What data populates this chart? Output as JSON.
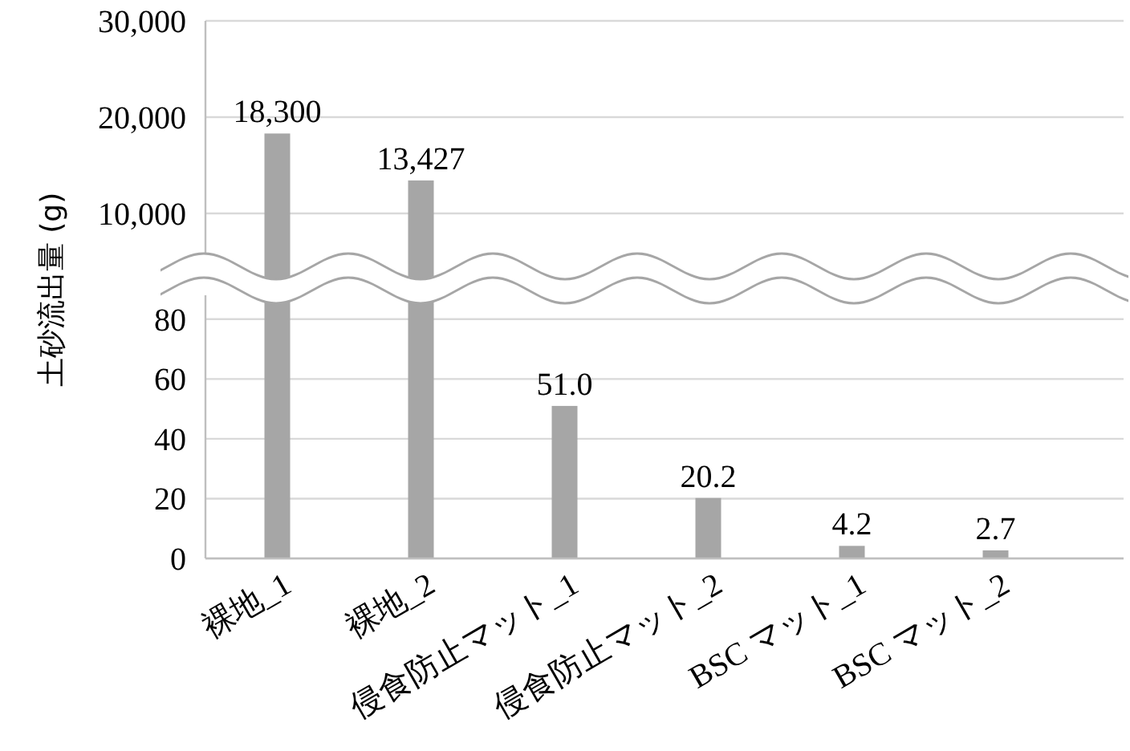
{
  "chart_data": [
    {
      "type": "bar",
      "values": [
        18300,
        13427,
        null,
        null,
        null,
        null
      ],
      "value_labels": [
        "18,300",
        "13,427",
        null,
        null,
        null,
        null
      ],
      "color": "#a6a6a6",
      "ylim": [
        5000,
        30000
      ],
      "yticks": [
        {
          "value": 10000,
          "label": "10,000"
        },
        {
          "value": 20000,
          "label": "20,000"
        },
        {
          "value": 30000,
          "label": "30,000"
        }
      ],
      "grid": "y",
      "tick_labels": "y"
    },
    {
      "type": "bar",
      "categories": [
        "裸地_1",
        "裸地_2",
        "侵食防止マット_1",
        "侵食防止マット_2",
        "BSC マット_1",
        "BSC マット_2"
      ],
      "values": [
        null,
        null,
        51.0,
        20.2,
        4.2,
        2.7
      ],
      "value_labels": [
        null,
        null,
        "51.0",
        "20.2",
        "4.2",
        "2.7"
      ],
      "color": "#a6a6a6",
      "ylim": [
        0,
        88
      ],
      "yticks": [
        0,
        20,
        40,
        60,
        80
      ],
      "grid": "y",
      "ylabel": "土砂流出量 (g)"
    }
  ]
}
